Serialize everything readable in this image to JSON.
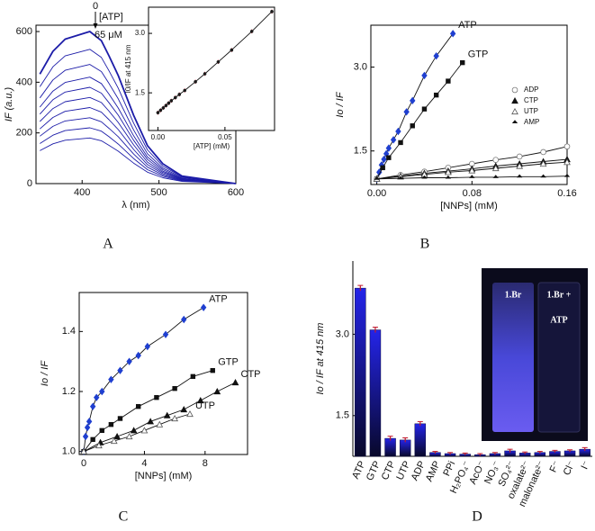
{
  "chart_data": [
    {
      "type": "line",
      "label": "A",
      "xlabel": "λ (nm)",
      "ylabel": "IF (a.u.)",
      "xlim": [
        340,
        600
      ],
      "ylim": [
        0,
        625
      ],
      "xticks": [
        400,
        500,
        600
      ],
      "yticks": [
        0,
        200,
        400,
        600
      ],
      "color": "#1c1ca8",
      "annotations": [
        "0",
        "[ATP]",
        "65 μM"
      ],
      "x": [
        345,
        362,
        378,
        410,
        425,
        435,
        447,
        467,
        485,
        505,
        530,
        600
      ],
      "series": [
        {
          "values": [
            432,
            522,
            570,
            600,
            564,
            504,
            426,
            270,
            150,
            78,
            30,
            0
          ]
        },
        {
          "values": [
            382,
            461,
            504,
            530,
            498,
            445,
            376,
            239,
            133,
            69,
            27,
            0
          ]
        },
        {
          "values": [
            338,
            409,
            447,
            470,
            442,
            395,
            334,
            212,
            118,
            61,
            24,
            0
          ]
        },
        {
          "values": [
            302,
            365,
            399,
            420,
            395,
            353,
            298,
            189,
            105,
            55,
            21,
            0
          ]
        },
        {
          "values": [
            274,
            331,
            361,
            380,
            357,
            319,
            270,
            171,
            95,
            49,
            19,
            0
          ]
        },
        {
          "values": [
            245,
            296,
            323,
            340,
            320,
            286,
            241,
            153,
            85,
            44,
            17,
            0
          ]
        },
        {
          "values": [
            216,
            261,
            285,
            300,
            282,
            252,
            213,
            135,
            75,
            39,
            15,
            0
          ]
        },
        {
          "values": [
            187,
            226,
            247,
            260,
            244,
            218,
            185,
            117,
            65,
            34,
            13,
            0
          ]
        },
        {
          "values": [
            158,
            191,
            209,
            220,
            207,
            185,
            156,
            99,
            55,
            29,
            11,
            0
          ]
        },
        {
          "values": [
            130,
            157,
            171,
            180,
            169,
            151,
            128,
            81,
            45,
            23,
            9,
            0
          ]
        }
      ]
    },
    {
      "type": "scatter",
      "xlabel": "[ATP] (mM)",
      "ylabel": "I0/IF at 415 nm",
      "xlim": [
        -0.007,
        0.087
      ],
      "ylim": [
        0.55,
        3.66
      ],
      "xticks": [
        {
          "value": 0,
          "label": "0.00"
        },
        0.05
      ],
      "yticks": [
        1.5,
        {
          "value": 3,
          "label": "3.0"
        }
      ],
      "fit": true,
      "error_color": "#c0182c",
      "series": [
        {
          "color": "#1a1a1a",
          "marker": "circle",
          "x": [
            0,
            0.002,
            0.004,
            0.006,
            0.008,
            0.01,
            0.013,
            0.016,
            0.02,
            0.028,
            0.035,
            0.045,
            0.055,
            0.07,
            0.085
          ],
          "values": [
            1.0,
            1.06,
            1.12,
            1.18,
            1.24,
            1.3,
            1.38,
            1.46,
            1.56,
            1.78,
            1.98,
            2.28,
            2.58,
            3.05,
            3.55
          ],
          "errors": [
            0.05,
            0.05,
            0.05,
            0.05,
            0.05,
            0.05,
            0.05,
            0.05,
            0.05,
            0.05,
            0.05,
            0.05,
            0.05,
            0.05,
            0.05
          ]
        }
      ]
    },
    {
      "type": "scatter",
      "label": "B",
      "xlabel": "[NNPs] (mM)",
      "ylabel": "Io / IF",
      "xlim": [
        -0.005,
        0.16
      ],
      "ylim": [
        0.9,
        3.75
      ],
      "xticks": [
        {
          "value": 0,
          "label": "0.00"
        },
        0.08,
        0.16
      ],
      "yticks": [
        1.5,
        {
          "value": 3,
          "label": "3.0"
        }
      ],
      "fit": true,
      "legend": "right",
      "series": [
        {
          "name": "ATP",
          "color": "#1f3fd0",
          "marker": "diamond",
          "legend": false,
          "x": [
            0,
            0.002,
            0.004,
            0.006,
            0.008,
            0.01,
            0.014,
            0.018,
            0.025,
            0.03,
            0.04,
            0.05,
            0.064
          ],
          "values": [
            1.0,
            1.12,
            1.25,
            1.35,
            1.45,
            1.55,
            1.7,
            1.85,
            2.2,
            2.4,
            2.85,
            3.2,
            3.6
          ]
        },
        {
          "name": "GTP",
          "color": "#111111",
          "marker": "square",
          "legend": false,
          "x": [
            0,
            0.005,
            0.01,
            0.02,
            0.03,
            0.04,
            0.05,
            0.06,
            0.072
          ],
          "values": [
            1.0,
            1.2,
            1.38,
            1.65,
            1.95,
            2.25,
            2.5,
            2.75,
            3.08
          ]
        },
        {
          "name": "ADP",
          "color": "#777777",
          "marker": "circle-open",
          "legend": true,
          "x": [
            0,
            0.02,
            0.04,
            0.06,
            0.08,
            0.1,
            0.12,
            0.14,
            0.16
          ],
          "values": [
            1.0,
            1.07,
            1.13,
            1.2,
            1.27,
            1.34,
            1.4,
            1.48,
            1.58
          ]
        },
        {
          "name": "CTP",
          "color": "#111111",
          "marker": "triangle",
          "legend": true,
          "x": [
            0,
            0.02,
            0.04,
            0.06,
            0.08,
            0.1,
            0.12,
            0.14,
            0.16
          ],
          "values": [
            1.0,
            1.05,
            1.1,
            1.14,
            1.18,
            1.23,
            1.27,
            1.31,
            1.35
          ]
        },
        {
          "name": "UTP",
          "color": "#555555",
          "marker": "triangle-open",
          "legend": true,
          "x": [
            0,
            0.02,
            0.04,
            0.06,
            0.08,
            0.1,
            0.12,
            0.14,
            0.16
          ],
          "values": [
            1.0,
            1.04,
            1.08,
            1.12,
            1.15,
            1.19,
            1.23,
            1.27,
            1.3
          ]
        },
        {
          "name": "AMP",
          "color": "#111111",
          "marker": "half",
          "legend": true,
          "x": [
            0,
            0.02,
            0.04,
            0.06,
            0.08,
            0.1,
            0.12,
            0.14,
            0.16
          ],
          "values": [
            1.0,
            1.01,
            1.02,
            1.02,
            1.03,
            1.03,
            1.04,
            1.04,
            1.05
          ]
        }
      ]
    },
    {
      "type": "scatter",
      "label": "C",
      "xlabel": "[NNPs] (mM)",
      "ylabel": "Io / IF",
      "xlim": [
        -0.3,
        10.8
      ],
      "ylim": [
        0.99,
        1.53
      ],
      "xticks": [
        0,
        4,
        8
      ],
      "yticks": [
        {
          "value": 1,
          "label": "1.0"
        },
        1.2,
        1.4
      ],
      "fit": true,
      "series": [
        {
          "name": "ATP",
          "color": "#1f3fd0",
          "marker": "diamond",
          "legend": false,
          "x": [
            0,
            0.12,
            0.24,
            0.36,
            0.6,
            0.84,
            1.2,
            1.8,
            2.4,
            3.0,
            3.6,
            4.2,
            5.4,
            6.6,
            7.9
          ],
          "values": [
            1.0,
            1.05,
            1.08,
            1.1,
            1.15,
            1.18,
            1.2,
            1.24,
            1.27,
            1.3,
            1.32,
            1.35,
            1.39,
            1.44,
            1.48
          ]
        },
        {
          "name": "GTP",
          "color": "#111111",
          "marker": "square",
          "legend": false,
          "x": [
            0,
            0.6,
            1.2,
            1.8,
            2.4,
            3.6,
            4.8,
            6.0,
            7.2,
            8.5
          ],
          "values": [
            1.0,
            1.04,
            1.07,
            1.09,
            1.11,
            1.15,
            1.18,
            1.21,
            1.25,
            1.27
          ]
        },
        {
          "name": "CTP",
          "color": "#111111",
          "marker": "triangle",
          "legend": false,
          "x": [
            0,
            1.1,
            2.2,
            3.3,
            4.4,
            5.5,
            6.6,
            7.7,
            8.8,
            10.0
          ],
          "values": [
            1.0,
            1.03,
            1.05,
            1.07,
            1.1,
            1.12,
            1.14,
            1.17,
            1.2,
            1.23
          ]
        },
        {
          "name": "UTP",
          "color": "#555555",
          "marker": "triangle-open",
          "legend": false,
          "x": [
            0,
            1,
            2,
            3,
            4,
            5,
            6,
            7
          ],
          "values": [
            1.0,
            1.02,
            1.035,
            1.05,
            1.07,
            1.09,
            1.11,
            1.125
          ]
        }
      ]
    },
    {
      "type": "bar",
      "label": "D",
      "ylabel": "Io / IF at 415 nm",
      "ylim": [
        0.75,
        4.35
      ],
      "yticks": [
        1.5,
        {
          "value": 3,
          "label": "3.0"
        }
      ],
      "color": "#2424e8",
      "error_color": "#c0182c",
      "categories": [
        "ATP",
        "GTP",
        "CTP",
        "UTP",
        "ADP",
        "AMP",
        "PPi",
        "H₂PO₄⁻",
        "AcO⁻",
        "NO₃⁻",
        "SO₄²⁻",
        "oxalate²⁻",
        "malonate²⁻",
        "F⁻",
        "Cl⁻",
        "I⁻"
      ],
      "values": [
        3.85,
        3.08,
        1.08,
        1.05,
        1.35,
        0.82,
        0.8,
        0.79,
        0.78,
        0.8,
        0.85,
        0.81,
        0.82,
        0.84,
        0.85,
        0.88
      ],
      "errors": [
        0.05,
        0.05,
        0.04,
        0.04,
        0.04,
        0.02,
        0.02,
        0.02,
        0.02,
        0.02,
        0.03,
        0.02,
        0.02,
        0.02,
        0.02,
        0.03
      ],
      "photo_labels": [
        "1.Br",
        "1.Br +",
        "ATP"
      ]
    }
  ]
}
